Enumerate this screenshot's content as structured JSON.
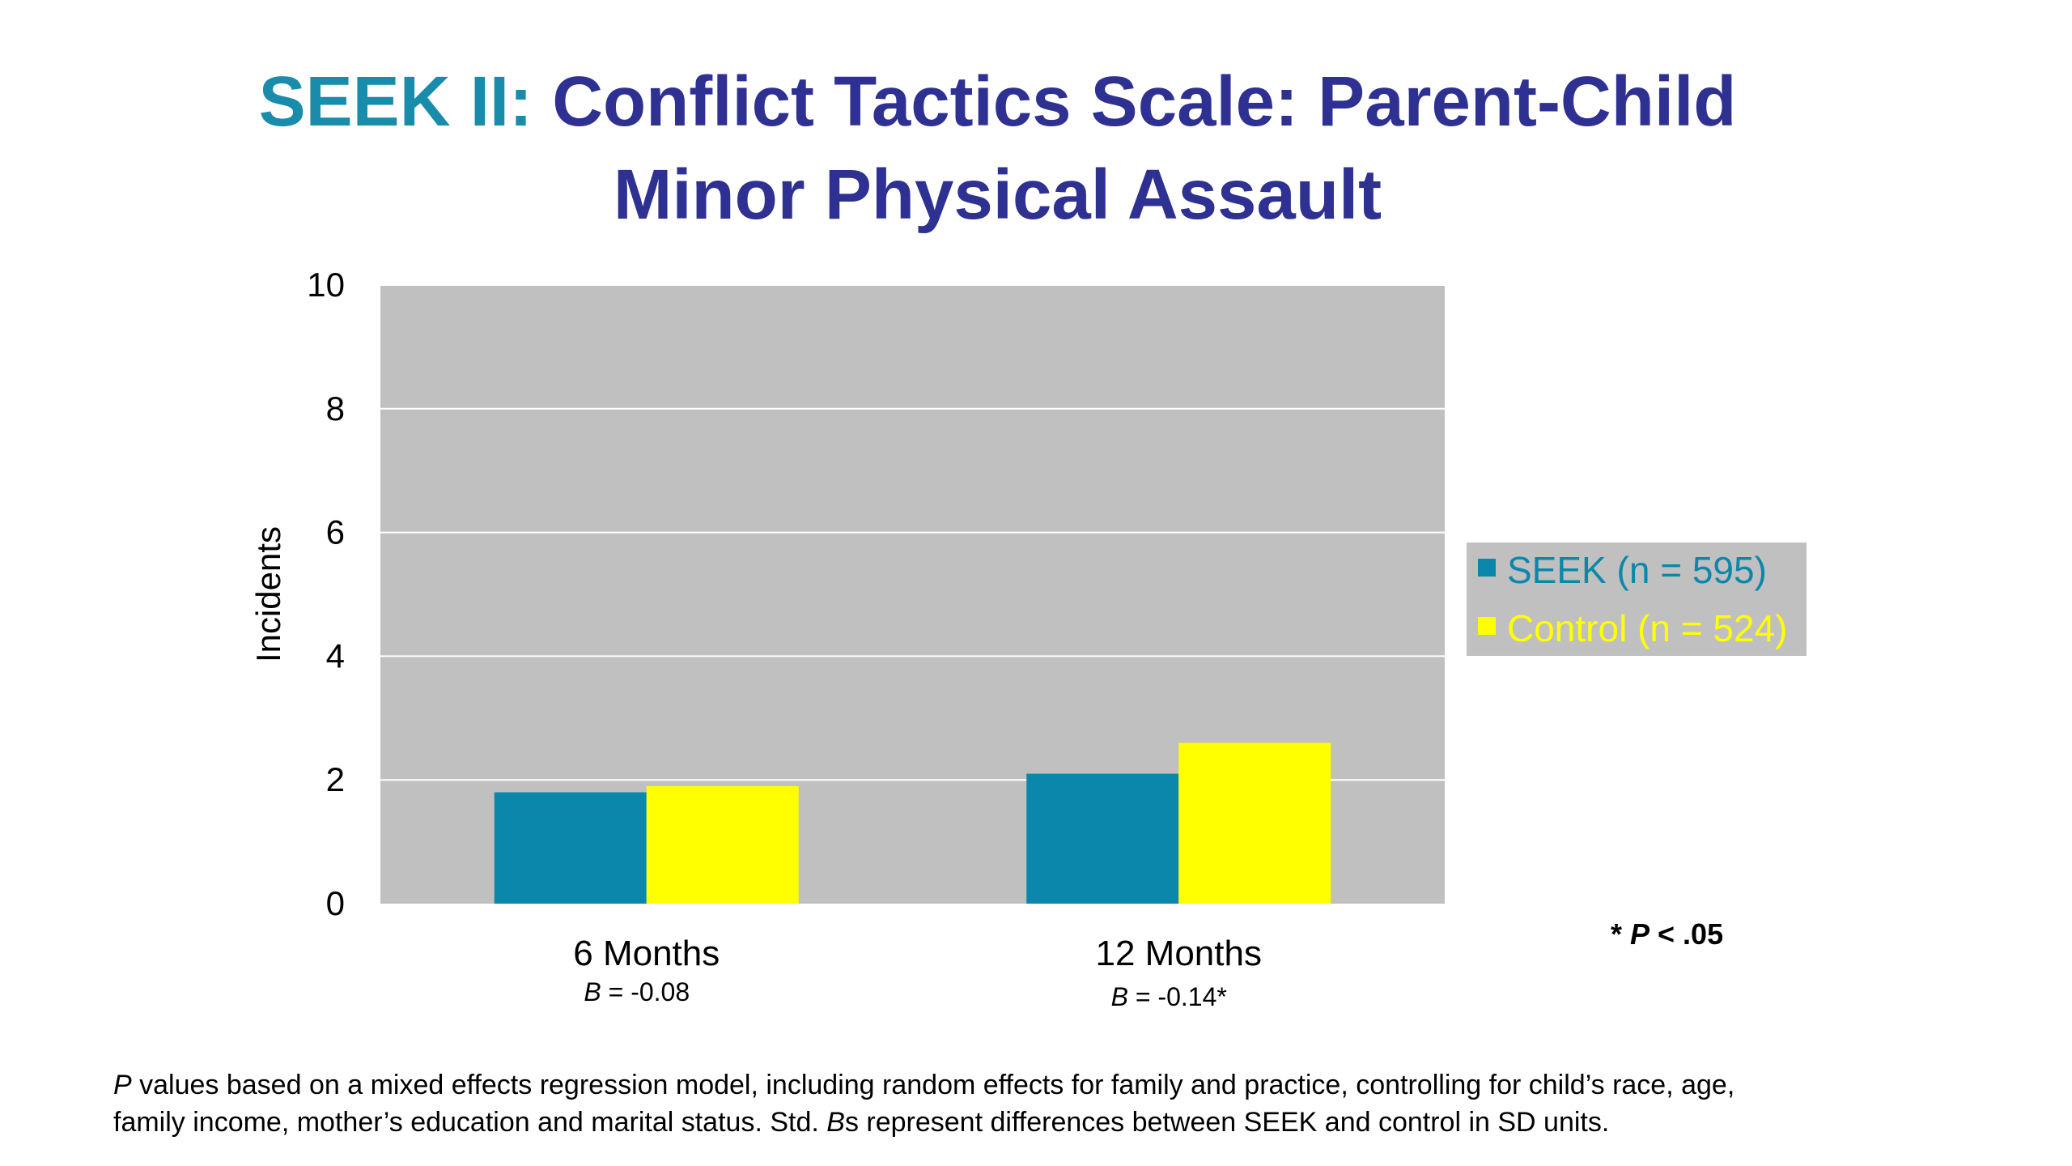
{
  "chart_data": {
    "type": "bar",
    "title_prefix": "SEEK II:",
    "title_line1": "Conflict Tactics Scale: Parent-Child",
    "title_line2": "Minor Physical Assault",
    "ylabel": "Incidents",
    "xlabel": "",
    "ylim": [
      0,
      10
    ],
    "yticks": [
      0,
      2,
      4,
      6,
      8,
      10
    ],
    "grid": true,
    "legend_position": "right",
    "categories": [
      "6 Months",
      "12 Months"
    ],
    "category_notes": [
      {
        "var": "B",
        "text": " = -0.08"
      },
      {
        "var": "B",
        "text": " = -0.14*"
      }
    ],
    "series": [
      {
        "name": "SEEK (n = 595)",
        "values": [
          1.8,
          2.1
        ],
        "color": "#0b87ab"
      },
      {
        "name": "Control (n = 524)",
        "values": [
          1.9,
          2.6
        ],
        "color": "#ffff00"
      }
    ],
    "plot_background": "#c0c0c0",
    "significance_note": {
      "star": "* ",
      "var": "P",
      "text": " < .05"
    }
  },
  "footnote": {
    "line1_var": "P",
    "line1_text": " values based on a mixed effects regression model, including random effects for family and practice, controlling for child’s race, age,",
    "line2_pre": "family income, mother’s education and marital status. Std. ",
    "line2_var": "B",
    "line2_text": "s represent differences between SEEK and control in SD units."
  }
}
